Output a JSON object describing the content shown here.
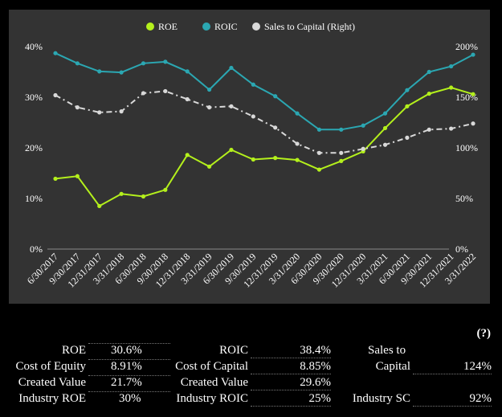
{
  "chart_data": {
    "type": "line",
    "categories": [
      "6/30/2017",
      "9/30/2017",
      "12/31/2017",
      "3/31/2018",
      "6/30/2018",
      "9/30/2018",
      "12/31/2018",
      "3/31/2019",
      "6/30/2019",
      "9/30/2019",
      "12/31/2019",
      "3/31/2020",
      "6/30/2020",
      "9/30/2020",
      "12/31/2020",
      "3/31/2021",
      "6/30/2021",
      "9/30/2021",
      "12/31/2021",
      "3/31/2022"
    ],
    "series": [
      {
        "name": "ROE",
        "axis": "left",
        "color": "#b4f01c",
        "dash": false,
        "values": [
          13.9,
          14.4,
          8.5,
          10.9,
          10.4,
          11.7,
          18.6,
          16.3,
          19.6,
          17.7,
          18.0,
          17.6,
          15.7,
          17.4,
          19.3,
          23.9,
          28.2,
          30.7,
          31.9,
          30.6
        ]
      },
      {
        "name": "ROIC",
        "axis": "left",
        "color": "#2ba7b2",
        "dash": false,
        "values": [
          38.7,
          36.7,
          35.1,
          34.9,
          36.7,
          37.0,
          35.1,
          31.5,
          35.8,
          32.5,
          30.2,
          26.8,
          23.6,
          23.6,
          24.4,
          26.8,
          31.4,
          35.0,
          36.1,
          38.4
        ]
      },
      {
        "name": "Sales to Capital (Right)",
        "axis": "right",
        "color": "#d9d9d9",
        "dash": true,
        "values": [
          152,
          140,
          135,
          136,
          154,
          156,
          148,
          140,
          141,
          131,
          120,
          104,
          95,
          95,
          99,
          103,
          110,
          118,
          119,
          124
        ]
      }
    ],
    "y_left": {
      "min": 0,
      "max": 40,
      "ticks": [
        0,
        10,
        20,
        30,
        40
      ],
      "labels": [
        "0%",
        "10%",
        "20%",
        "30%",
        "40%"
      ]
    },
    "y_right": {
      "min": 0,
      "max": 200,
      "ticks": [
        0,
        50,
        100,
        150,
        200
      ],
      "labels": [
        "0%",
        "50%",
        "100%",
        "150%",
        "200%"
      ]
    },
    "grid": false,
    "legend_position": "top-center"
  },
  "stats": {
    "help_label": "(?)",
    "col1": [
      {
        "label": "ROE",
        "value": "30.6%"
      },
      {
        "label": "Cost of Equity",
        "value": "8.91%"
      },
      {
        "label": "Created Value",
        "value": "21.7%"
      },
      {
        "label": "Industry ROE",
        "value": "30%"
      }
    ],
    "col2": [
      {
        "label": "ROIC",
        "value": "38.4%"
      },
      {
        "label": "Cost of Capital",
        "value": "8.85%"
      },
      {
        "label": "Created Value",
        "value": "29.6%"
      },
      {
        "label": "Industry ROIC",
        "value": "25%"
      }
    ],
    "col3": {
      "sales_label_line1": "Sales to",
      "sales_label_line2": "Capital",
      "sales_value": "124%",
      "industry_label": "Industry SC",
      "industry_value": "92%"
    }
  }
}
